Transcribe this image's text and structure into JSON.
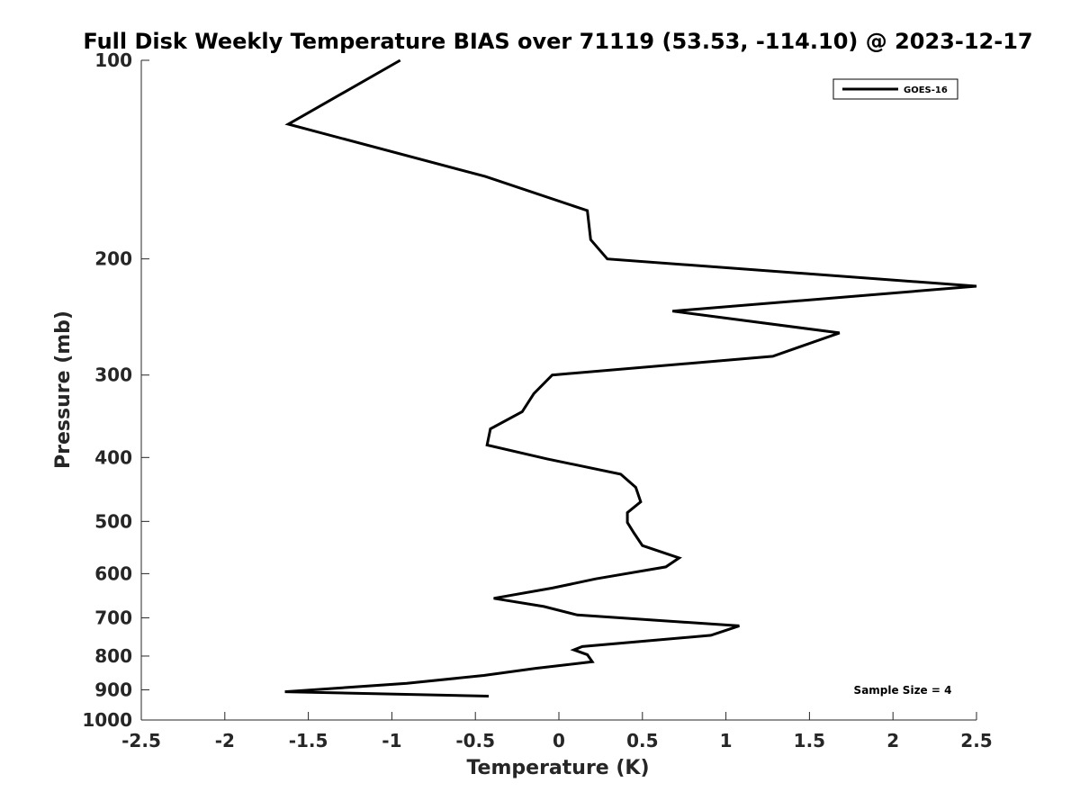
{
  "chart_data": {
    "type": "line",
    "title": "Full Disk Weekly Temperature BIAS over 71119 (53.53, -114.10) @ 2023-12-17",
    "xlabel": "Temperature (K)",
    "ylabel": "Pressure (mb)",
    "xlim": [
      -2.5,
      2.5
    ],
    "ylim": [
      100,
      1000
    ],
    "y_scale": "log",
    "y_reversed": true,
    "grid": false,
    "legend_position": "top-right",
    "x_ticks": [
      -2.5,
      -2,
      -1.5,
      -1,
      -0.5,
      0,
      0.5,
      1,
      1.5,
      2,
      2.5
    ],
    "x_tick_labels": [
      "-2.5",
      "-2",
      "-1.5",
      "-1",
      "-0.5",
      "0",
      "0.5",
      "1",
      "1.5",
      "2",
      "2.5"
    ],
    "y_ticks": [
      100,
      200,
      300,
      400,
      500,
      600,
      700,
      800,
      900,
      1000
    ],
    "y_tick_labels": [
      "100",
      "200",
      "300",
      "400",
      "500",
      "600",
      "700",
      "800",
      "900",
      "1000"
    ],
    "series": [
      {
        "name": "GOES-16",
        "color": "#000000",
        "points": [
          [
            -0.95,
            100
          ],
          [
            -1.62,
            125
          ],
          [
            -0.44,
            150
          ],
          [
            0.17,
            169
          ],
          [
            0.19,
            187
          ],
          [
            0.29,
            200
          ],
          [
            2.5,
            220
          ],
          [
            0.68,
            240
          ],
          [
            1.68,
            259
          ],
          [
            1.28,
            281
          ],
          [
            -0.04,
            300
          ],
          [
            -0.15,
            320
          ],
          [
            -0.22,
            341
          ],
          [
            -0.41,
            362
          ],
          [
            -0.43,
            383
          ],
          [
            -0.07,
            402
          ],
          [
            0.37,
            424
          ],
          [
            0.46,
            444
          ],
          [
            0.49,
            467
          ],
          [
            0.41,
            485
          ],
          [
            0.41,
            502
          ],
          [
            0.45,
            521
          ],
          [
            0.5,
            544
          ],
          [
            0.72,
            568
          ],
          [
            0.64,
            586
          ],
          [
            0.22,
            611
          ],
          [
            -0.04,
            631
          ],
          [
            -0.39,
            654
          ],
          [
            -0.09,
            673
          ],
          [
            0.11,
            693
          ],
          [
            1.08,
            720
          ],
          [
            0.91,
            744
          ],
          [
            0.14,
            774
          ],
          [
            0.09,
            783
          ],
          [
            0.17,
            796
          ],
          [
            0.2,
            816
          ],
          [
            -0.14,
            835
          ],
          [
            -0.45,
            856
          ],
          [
            -0.91,
            880
          ],
          [
            -1.64,
            906
          ],
          [
            -0.42,
            920
          ]
        ]
      }
    ],
    "annotation": "Sample Size = 4"
  }
}
